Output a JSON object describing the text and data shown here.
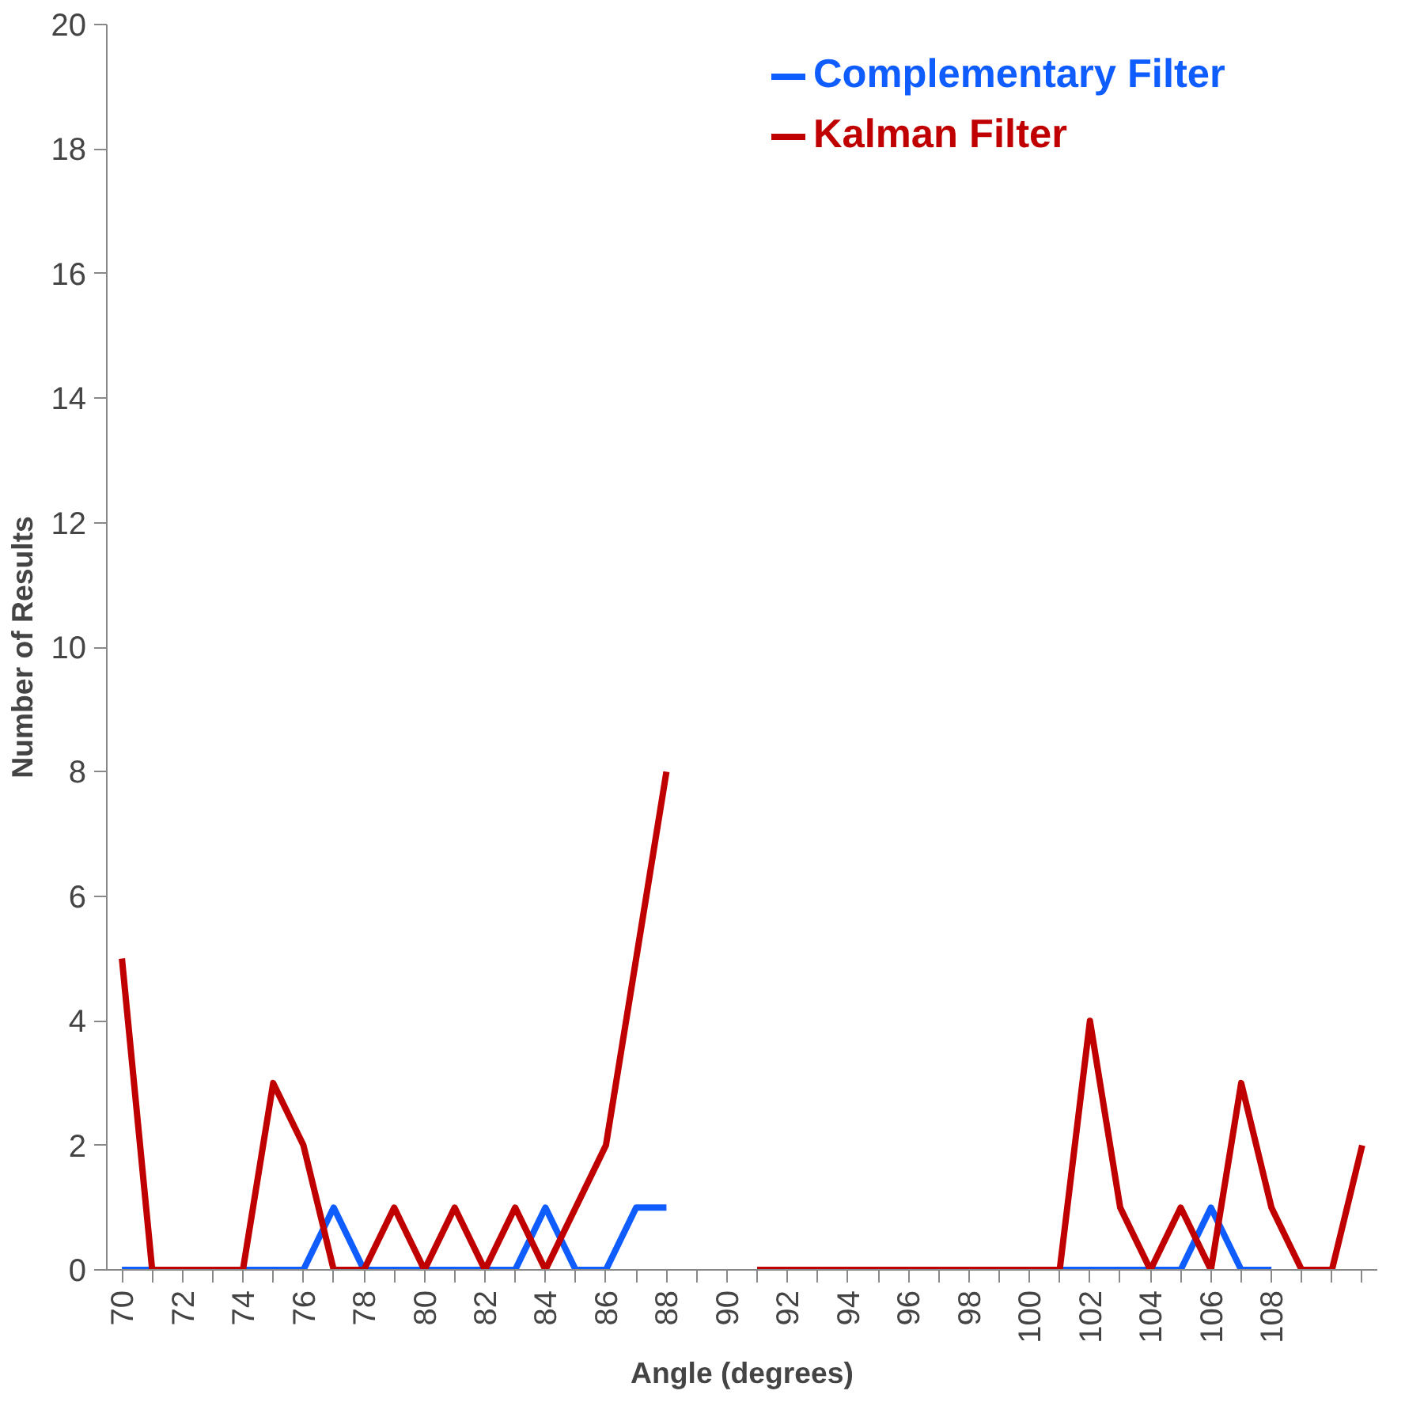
{
  "chart_data": {
    "type": "line",
    "xlabel": "Angle (degrees)",
    "ylabel": "Number of Results",
    "categories": [
      "70",
      null,
      "72",
      null,
      "74",
      null,
      "76",
      null,
      "78",
      null,
      "80",
      null,
      "82",
      null,
      "84",
      null,
      "86",
      null,
      "88",
      null,
      "90",
      null,
      "92",
      null,
      "94",
      null,
      "96",
      null,
      "98",
      null,
      "100",
      null,
      "102",
      null,
      "104",
      null,
      "106",
      null,
      "108",
      null,
      null,
      null
    ],
    "series": [
      {
        "name": "Complementary Filter",
        "color": "#0f5cff",
        "values": [
          0,
          0,
          0,
          0,
          0,
          0,
          0,
          1,
          0,
          0,
          0,
          0,
          0,
          0,
          1,
          0,
          0,
          1,
          1,
          null,
          null,
          0,
          0,
          0,
          0,
          0,
          0,
          0,
          0,
          0,
          0,
          0,
          0,
          0,
          0,
          0,
          1,
          0,
          0,
          null,
          null,
          null
        ]
      },
      {
        "name": "Kalman Filter",
        "color": "#c00000",
        "values": [
          5,
          0,
          0,
          0,
          0,
          3,
          2,
          0,
          0,
          1,
          0,
          1,
          0,
          1,
          0,
          1,
          2,
          5,
          8,
          null,
          null,
          0,
          0,
          0,
          0,
          0,
          0,
          0,
          0,
          0,
          0,
          0,
          4,
          1,
          0,
          1,
          0,
          3,
          1,
          0,
          0,
          2
        ]
      }
    ],
    "ylim": [
      0,
      20
    ],
    "yticks": [
      0,
      2,
      4,
      6,
      8,
      10,
      12,
      14,
      16,
      18,
      20
    ],
    "grid": false,
    "legend": "top right",
    "marker": "none",
    "line_style": "solid"
  }
}
